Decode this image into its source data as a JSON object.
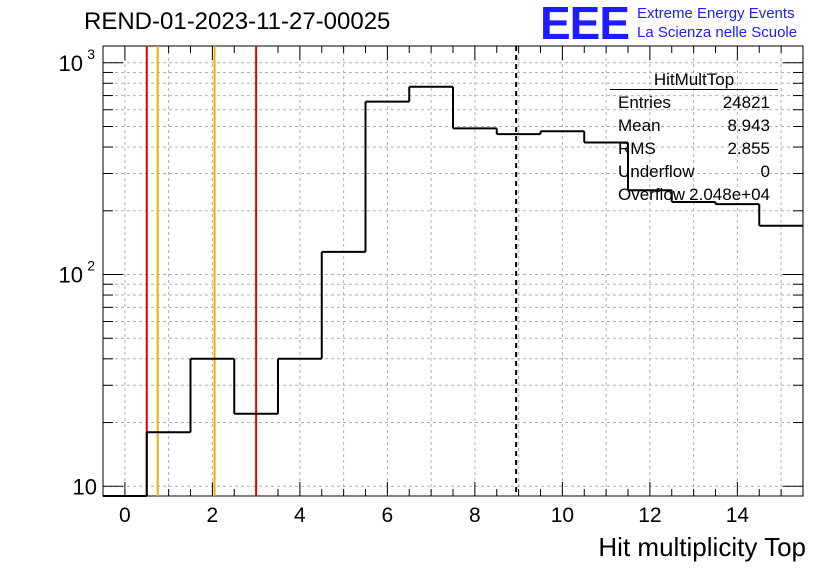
{
  "header": {
    "title": "REND-01-2023-11-27-00025",
    "logo_text": "EEE",
    "logo_line1": "Extreme Energy Events",
    "logo_line2": "La Scienza nelle Scuole"
  },
  "stats_box": {
    "title": "HitMultTop",
    "rows": [
      {
        "label": "Entries",
        "value": "24821"
      },
      {
        "label": "Mean",
        "value": "8.943"
      },
      {
        "label": "RMS",
        "value": "2.855"
      },
      {
        "label": "Underflow",
        "value": "0"
      },
      {
        "label": "Overflow",
        "value": "2.048e+04"
      }
    ]
  },
  "colors": {
    "histogram": "#000000",
    "red_cut": "#e00000",
    "orange_cut": "#f0b000",
    "mean_line": "#000000",
    "grid": "#b0b0b0",
    "logo": "#1c1cff"
  },
  "chart_data": {
    "type": "bar",
    "style": "step-histogram",
    "xlabel": "Hit multiplicity Top",
    "ylabel": "",
    "xlim": [
      -0.5,
      15.5
    ],
    "ylim": [
      9,
      1200
    ],
    "log_y": true,
    "grid": true,
    "legend": "top-right",
    "bin_width": 1,
    "bin_centers": [
      0,
      1,
      2,
      3,
      4,
      5,
      6,
      7,
      8,
      9,
      10,
      11,
      12,
      13,
      14,
      15
    ],
    "values": [
      0,
      18,
      40,
      22,
      40,
      128,
      655,
      770,
      490,
      460,
      475,
      420,
      250,
      220,
      215,
      170
    ],
    "x_ticks": [
      0,
      2,
      4,
      6,
      8,
      10,
      12,
      14
    ],
    "x_tick_labels": [
      "0",
      "2",
      "4",
      "6",
      "8",
      "10",
      "12",
      "14"
    ],
    "y_ticks": [
      10,
      100,
      1000
    ],
    "y_tick_labels": [
      "10",
      "10",
      "10"
    ],
    "y_tick_exponents": [
      "",
      "2",
      "3"
    ],
    "vertical_lines": [
      {
        "x": 0.5,
        "color": "red",
        "style": "solid"
      },
      {
        "x": 0.75,
        "color": "orange",
        "style": "solid"
      },
      {
        "x": 2.05,
        "color": "orange",
        "style": "solid"
      },
      {
        "x": 3.0,
        "color": "red",
        "style": "solid"
      },
      {
        "x": 8.943,
        "color": "black",
        "style": "dashed"
      }
    ]
  }
}
